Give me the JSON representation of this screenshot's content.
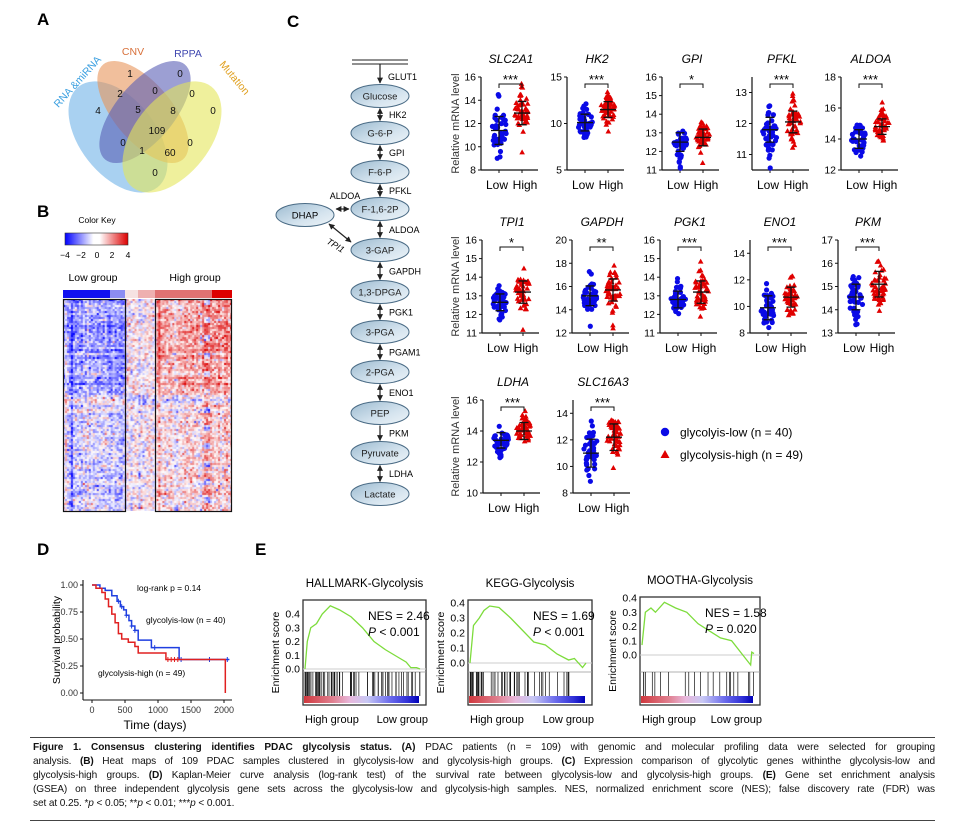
{
  "panel_labels": {
    "a": "A",
    "b": "B",
    "c": "C",
    "d": "D",
    "e": "E"
  },
  "venn": {
    "sets": [
      {
        "name": "RNA &miRNA",
        "color": "#6fb2e8",
        "label_color": "#3a9fe0"
      },
      {
        "name": "CNV",
        "color": "#e8955a",
        "label_color": "#d8703a"
      },
      {
        "name": "RPPA",
        "color": "#5a5fb5",
        "label_color": "#4048b0"
      },
      {
        "name": "Mutation",
        "color": "#e4e65a",
        "label_color": "#e0a020"
      }
    ],
    "regions": [
      {
        "sets": [
          "CNV"
        ],
        "count": "1"
      },
      {
        "sets": [
          "RPPA"
        ],
        "count": "0"
      },
      {
        "sets": [
          "RNA &miRNA",
          "CNV"
        ],
        "count": "2"
      },
      {
        "sets": [
          "CNV",
          "RPPA"
        ],
        "count": "0"
      },
      {
        "sets": [
          "RPPA",
          "Mutation"
        ],
        "count": "0"
      },
      {
        "sets": [
          "RNA &miRNA"
        ],
        "count": "4"
      },
      {
        "sets": [
          "RNA &miRNA",
          "CNV",
          "RPPA"
        ],
        "count": "5"
      },
      {
        "sets": [
          "CNV",
          "RPPA",
          "Mutation"
        ],
        "count": "8"
      },
      {
        "sets": [
          "Mutation"
        ],
        "count": "0"
      },
      {
        "sets": [
          "RNA &miRNA",
          "CNV",
          "RPPA",
          "Mutation"
        ],
        "count": "109"
      },
      {
        "sets": [
          "RNA &miRNA",
          "RPPA"
        ],
        "count": "0"
      },
      {
        "sets": [
          "CNV",
          "Mutation"
        ],
        "count": "0"
      },
      {
        "sets": [
          "RNA &miRNA",
          "RPPA",
          "Mutation"
        ],
        "count": "1"
      },
      {
        "sets": [
          "RNA &miRNA",
          "CNV",
          "Mutation"
        ],
        "count": "60"
      },
      {
        "sets": [
          "RNA &miRNA",
          "Mutation"
        ],
        "count": "0"
      }
    ]
  },
  "heatmap": {
    "color_key_title": "Color Key",
    "color_key_ticks": [
      "−4",
      "−2",
      "0",
      "2",
      "4"
    ],
    "color_low": "#0000ff",
    "color_mid": "#ffffff",
    "color_high": "#dd0000",
    "low_group_label": "Low group",
    "high_group_label": "High group"
  },
  "pathway": {
    "nodes": [
      "Glucose",
      "G-6-P",
      "F-6-P",
      "F-1,6-2P",
      "3-GAP",
      "1,3-DPGA",
      "3-PGA",
      "2-PGA",
      "PEP",
      "Pyruvate",
      "Lactate"
    ],
    "enzymes": [
      "GLUT1",
      "HK2",
      "GPI",
      "PFKL",
      "ALDOA",
      "GAPDH",
      "PGK1",
      "PGAM1",
      "ENO1",
      "PKM",
      "LDHA"
    ],
    "side_node": "DHAP",
    "side_enzyme_1": "ALDOA",
    "side_enzyme_2": "TPI1"
  },
  "legend": {
    "low": {
      "label": "glycolyis-low (n = 40)",
      "color": "#0a0ae6",
      "marker": "circle"
    },
    "high": {
      "label": "glycolysis-high (n = 49)",
      "color": "#e00000",
      "marker": "triangle"
    }
  },
  "chart_data": [
    {
      "type": "scatter",
      "gene": "SLC2A1",
      "ylabel": "Relative mRNA level",
      "ylim": [
        8,
        16
      ],
      "yticks": [
        8,
        10,
        12,
        14,
        16
      ],
      "categories": [
        "Low",
        "High"
      ],
      "significance": "***",
      "groups": [
        {
          "name": "Low",
          "n": 40,
          "mean": 11.4,
          "sd": 1.2
        },
        {
          "name": "High",
          "n": 49,
          "mean": 12.9,
          "sd": 1.0
        }
      ]
    },
    {
      "type": "scatter",
      "gene": "HK2",
      "ylabel": "",
      "ylim": [
        5,
        15
      ],
      "yticks": [
        5,
        10,
        15
      ],
      "categories": [
        "Low",
        "High"
      ],
      "significance": "***",
      "groups": [
        {
          "name": "Low",
          "n": 40,
          "mean": 10.1,
          "sd": 0.9
        },
        {
          "name": "High",
          "n": 49,
          "mean": 11.5,
          "sd": 0.85
        }
      ]
    },
    {
      "type": "scatter",
      "gene": "GPI",
      "ylabel": "",
      "ylim": [
        11,
        16
      ],
      "yticks": [
        11,
        12,
        13,
        14,
        15,
        16
      ],
      "categories": [
        "Low",
        "High"
      ],
      "significance": "*",
      "groups": [
        {
          "name": "Low",
          "n": 40,
          "mean": 12.5,
          "sd": 0.5
        },
        {
          "name": "High",
          "n": 49,
          "mean": 12.75,
          "sd": 0.45
        }
      ]
    },
    {
      "type": "scatter",
      "gene": "PFKL",
      "ylabel": "",
      "ylim": [
        10.5,
        13.5
      ],
      "yticks": [
        11,
        12,
        13
      ],
      "categories": [
        "Low",
        "High"
      ],
      "significance": "***",
      "groups": [
        {
          "name": "Low",
          "n": 40,
          "mean": 11.8,
          "sd": 0.4
        },
        {
          "name": "High",
          "n": 49,
          "mean": 12.05,
          "sd": 0.35
        }
      ]
    },
    {
      "type": "scatter",
      "gene": "ALDOA",
      "ylabel": "",
      "ylim": [
        12,
        18
      ],
      "yticks": [
        12,
        14,
        16,
        18
      ],
      "categories": [
        "Low",
        "High"
      ],
      "significance": "***",
      "groups": [
        {
          "name": "Low",
          "n": 40,
          "mean": 14.0,
          "sd": 0.6
        },
        {
          "name": "High",
          "n": 49,
          "mean": 14.8,
          "sd": 0.5
        }
      ]
    },
    {
      "type": "scatter",
      "gene": "TPI1",
      "ylabel": "Relative mRNA level",
      "ylim": [
        11,
        16
      ],
      "yticks": [
        11,
        12,
        13,
        14,
        15,
        16
      ],
      "categories": [
        "Low",
        "High"
      ],
      "significance": "*",
      "groups": [
        {
          "name": "Low",
          "n": 40,
          "mean": 12.65,
          "sd": 0.45
        },
        {
          "name": "High",
          "n": 49,
          "mean": 13.2,
          "sd": 0.6
        }
      ]
    },
    {
      "type": "scatter",
      "gene": "GAPDH",
      "ylabel": "",
      "ylim": [
        12,
        20
      ],
      "yticks": [
        12,
        14,
        16,
        18,
        20
      ],
      "categories": [
        "Low",
        "High"
      ],
      "significance": "**",
      "groups": [
        {
          "name": "Low",
          "n": 40,
          "mean": 15.2,
          "sd": 0.85
        },
        {
          "name": "High",
          "n": 49,
          "mean": 15.7,
          "sd": 0.95
        }
      ]
    },
    {
      "type": "scatter",
      "gene": "PGK1",
      "ylabel": "",
      "ylim": [
        11,
        16
      ],
      "yticks": [
        11,
        12,
        13,
        14,
        15,
        16
      ],
      "categories": [
        "Low",
        "High"
      ],
      "significance": "***",
      "groups": [
        {
          "name": "Low",
          "n": 40,
          "mean": 12.8,
          "sd": 0.45
        },
        {
          "name": "High",
          "n": 49,
          "mean": 13.2,
          "sd": 0.6
        }
      ]
    },
    {
      "type": "scatter",
      "gene": "ENO1",
      "ylabel": "",
      "ylim": [
        8,
        15
      ],
      "yticks": [
        8,
        10,
        12,
        14
      ],
      "categories": [
        "Low",
        "High"
      ],
      "significance": "***",
      "groups": [
        {
          "name": "Low",
          "n": 40,
          "mean": 9.9,
          "sd": 0.9
        },
        {
          "name": "High",
          "n": 49,
          "mean": 10.7,
          "sd": 0.75
        }
      ]
    },
    {
      "type": "scatter",
      "gene": "PKM",
      "ylabel": "",
      "ylim": [
        13,
        17
      ],
      "yticks": [
        13,
        14,
        15,
        16,
        17
      ],
      "categories": [
        "Low",
        "High"
      ],
      "significance": "***",
      "groups": [
        {
          "name": "Low",
          "n": 40,
          "mean": 14.55,
          "sd": 0.55
        },
        {
          "name": "High",
          "n": 49,
          "mean": 15.1,
          "sd": 0.55
        }
      ]
    },
    {
      "type": "scatter",
      "gene": "LDHA",
      "ylabel": "Relative mRNA level",
      "ylim": [
        10,
        16
      ],
      "yticks": [
        10,
        12,
        14,
        16
      ],
      "categories": [
        "Low",
        "High"
      ],
      "significance": "***",
      "groups": [
        {
          "name": "Low",
          "n": 40,
          "mean": 13.4,
          "sd": 0.5
        },
        {
          "name": "High",
          "n": 49,
          "mean": 14.0,
          "sd": 0.55
        }
      ]
    },
    {
      "type": "scatter",
      "gene": "SLC16A3",
      "ylabel": "",
      "ylim": [
        8,
        15
      ],
      "yticks": [
        8,
        10,
        12,
        14
      ],
      "categories": [
        "Low",
        "High"
      ],
      "significance": "***",
      "groups": [
        {
          "name": "Low",
          "n": 40,
          "mean": 11.0,
          "sd": 1.05
        },
        {
          "name": "High",
          "n": 49,
          "mean": 12.2,
          "sd": 1.0
        }
      ]
    },
    {
      "type": "line",
      "subtype": "kaplan-meier",
      "xlabel": "Time (days)",
      "ylabel": "Survival probability",
      "xlim": [
        0,
        2000
      ],
      "xticks": [
        0,
        500,
        1000,
        1500,
        2000
      ],
      "ylim": [
        0,
        1
      ],
      "yticks": [
        "0.00",
        "0.25",
        "0.50",
        "0.75",
        "1.00"
      ],
      "annotation": "log-rank p = 0.14",
      "series": [
        {
          "name": "glycolyis-low (n = 40)",
          "color": "#1f3fe0",
          "steps": [
            [
              0,
              1
            ],
            [
              120,
              0.97
            ],
            [
              200,
              0.95
            ],
            [
              300,
              0.9
            ],
            [
              380,
              0.85
            ],
            [
              430,
              0.8
            ],
            [
              480,
              0.77
            ],
            [
              520,
              0.72
            ],
            [
              560,
              0.67
            ],
            [
              600,
              0.62
            ],
            [
              650,
              0.58
            ],
            [
              700,
              0.49
            ],
            [
              900,
              0.42
            ],
            [
              1320,
              0.31
            ],
            [
              2080,
              0.31
            ]
          ],
          "censored": [
            400,
            450,
            520,
            600,
            650,
            950,
            1350,
            1780,
            2050
          ]
        },
        {
          "name": "glycolysis-high (n = 49)",
          "color": "#e02020",
          "steps": [
            [
              0,
              1
            ],
            [
              60,
              0.97
            ],
            [
              150,
              0.93
            ],
            [
              200,
              0.87
            ],
            [
              250,
              0.8
            ],
            [
              300,
              0.73
            ],
            [
              350,
              0.65
            ],
            [
              400,
              0.55
            ],
            [
              450,
              0.5
            ],
            [
              550,
              0.47
            ],
            [
              650,
              0.43
            ],
            [
              700,
              0.37
            ],
            [
              1120,
              0.31
            ],
            [
              2020,
              0
            ],
            [
              2020,
              0
            ]
          ],
          "censored": [
            1150,
            1200,
            1250,
            1300
          ]
        }
      ]
    },
    {
      "type": "line",
      "subtype": "gsea",
      "title": "HALLMARK-Glycolysis",
      "ylabel": "Enrichment score",
      "yticks": [
        "0.0",
        "0.1",
        "0.2",
        "0.3",
        "0.4"
      ],
      "nes": "NES = 2.46",
      "p_label": "P",
      "p_text": " < 0.001",
      "xlabels": [
        "High group",
        "Low group"
      ],
      "curve": [
        [
          0,
          0
        ],
        [
          0.02,
          0.2
        ],
        [
          0.05,
          0.3
        ],
        [
          0.1,
          0.33
        ],
        [
          0.15,
          0.4
        ],
        [
          0.22,
          0.46
        ],
        [
          0.3,
          0.43
        ],
        [
          0.4,
          0.38
        ],
        [
          0.5,
          0.3
        ],
        [
          0.6,
          0.2
        ],
        [
          0.7,
          0.14
        ],
        [
          0.8,
          0.09
        ],
        [
          0.88,
          0.05
        ],
        [
          0.92,
          0.01
        ],
        [
          0.97,
          0.01
        ],
        [
          1,
          0
        ]
      ]
    },
    {
      "type": "line",
      "subtype": "gsea",
      "title": "KEGG-Glycolysis",
      "ylabel": "Enrichment score",
      "yticks": [
        "0.0",
        "0.1",
        "0.2",
        "0.3",
        "0.4"
      ],
      "nes": "NES = 1.69",
      "p_label": "P",
      "p_text": " < 0.001",
      "xlabels": [
        "High group",
        "Low group"
      ],
      "curve": [
        [
          0,
          0
        ],
        [
          0.03,
          0.25
        ],
        [
          0.08,
          0.3
        ],
        [
          0.12,
          0.35
        ],
        [
          0.17,
          0.38
        ],
        [
          0.25,
          0.37
        ],
        [
          0.35,
          0.3
        ],
        [
          0.45,
          0.22
        ],
        [
          0.55,
          0.14
        ],
        [
          0.65,
          0.12
        ],
        [
          0.75,
          0.06
        ],
        [
          0.85,
          0.02
        ],
        [
          0.9,
          0.03
        ],
        [
          0.97,
          -0.03
        ],
        [
          1,
          0
        ]
      ]
    },
    {
      "type": "line",
      "subtype": "gsea",
      "title": "MOOTHA-Glycolysis",
      "ylabel": "Enrichment score",
      "yticks": [
        "0.0",
        "0.1",
        "0.2",
        "0.3",
        "0.4"
      ],
      "nes": "NES = 1.58",
      "p_label": "P",
      "p_text": " = 0.020",
      "xlabels": [
        "High group",
        "Low group"
      ],
      "curve": [
        [
          0,
          0.07
        ],
        [
          0.03,
          0.3
        ],
        [
          0.08,
          0.33
        ],
        [
          0.12,
          0.3
        ],
        [
          0.2,
          0.37
        ],
        [
          0.3,
          0.33
        ],
        [
          0.4,
          0.3
        ],
        [
          0.5,
          0.22
        ],
        [
          0.6,
          0.17
        ],
        [
          0.7,
          0.12
        ],
        [
          0.8,
          0.1
        ],
        [
          0.9,
          0.0
        ],
        [
          0.97,
          -0.07
        ],
        [
          0.98,
          0.02
        ],
        [
          1,
          0.01
        ]
      ]
    }
  ],
  "caption": {
    "lines": [
      [
        {
          "b": "Figure 1. Consensus clustering identifies PDAC glycolysis status. (A)"
        },
        {
          "t": " PDAC patients (n = 109) with genomic and molecular profiling data were selected for grouping"
        }
      ],
      [
        {
          "t": "analysis. "
        },
        {
          "b": "(B)"
        },
        {
          "t": " Heat maps of 109 PDAC samples clustered in glycolysis-low and glycolysis-high groups. "
        },
        {
          "b": "(C)"
        },
        {
          "t": " Expression comparison of glycolytic genes withinthe glycolysis-low and"
        }
      ],
      [
        {
          "t": "glycolysis-high groups. "
        },
        {
          "b": "(D)"
        },
        {
          "t": " Kaplan-Meier curve analysis (log-rank test) of the survival rate between glycolysis-low and glycolysis-high groups. "
        },
        {
          "b": "(E)"
        },
        {
          "t": " Gene set enrichment analysis"
        }
      ],
      [
        {
          "t": "(GSEA) on three independent glycolysis gene sets across the glycolysis-low and glycolysis-high samples. NES, normalized enrichment score (NES); false discovery rate (FDR) was"
        }
      ],
      [
        {
          "t": "set at 0.25. *"
        },
        {
          "i": "p"
        },
        {
          "t": " < 0.05; **"
        },
        {
          "i": "p"
        },
        {
          "t": " < 0.01; ***"
        },
        {
          "i": "p"
        },
        {
          "t": " < 0.001."
        }
      ]
    ]
  }
}
